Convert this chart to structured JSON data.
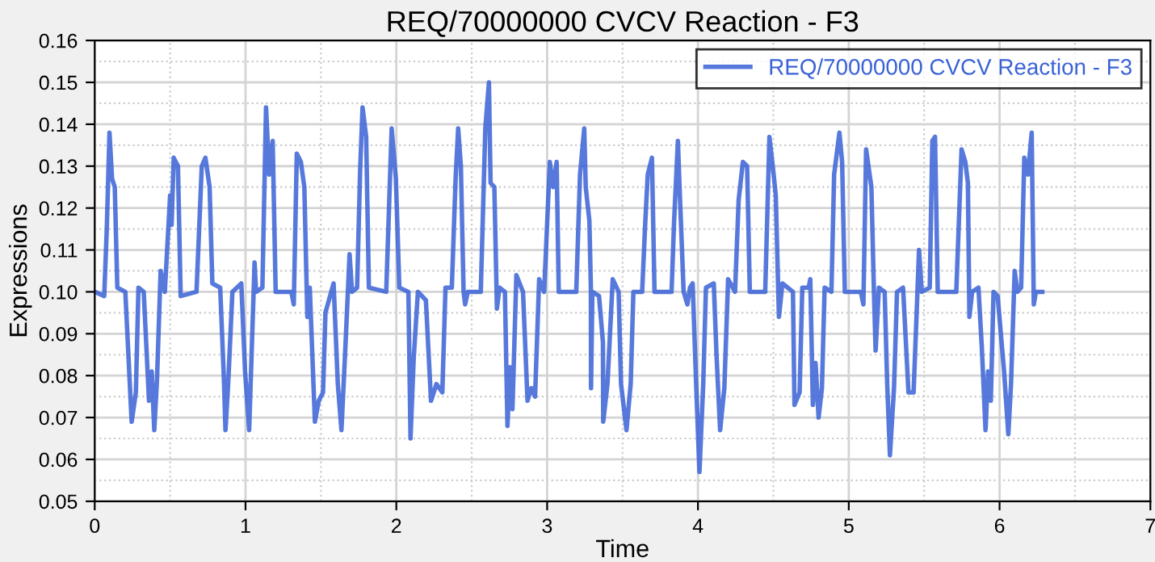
{
  "chart_data": {
    "type": "line",
    "title": "REQ/70000000 CVCV Reaction - F3",
    "xlabel": "Time",
    "ylabel": "Expressions",
    "xlim": [
      0,
      7
    ],
    "ylim": [
      0.05,
      0.16
    ],
    "xticks": [
      0,
      1,
      2,
      3,
      4,
      5,
      6,
      7
    ],
    "yticks": [
      0.05,
      0.06,
      0.07,
      0.08,
      0.09,
      {
        "value": 0.1,
        "label": "0.10"
      },
      0.11,
      0.12,
      0.13,
      0.14,
      0.15,
      0.16
    ],
    "grid": true,
    "legend": "top right",
    "line_style": "solid",
    "marker": "none",
    "series": [
      {
        "name": "REQ/70000000 CVCV Reaction - F3",
        "color": "#3a62d6",
        "x": [
          0,
          0.063,
          0.08,
          0.098,
          0.115,
          0.133,
          0.15,
          0.203,
          0.245,
          0.273,
          0.29,
          0.325,
          0.36,
          0.378,
          0.395,
          0.413,
          0.437,
          0.465,
          0.5,
          0.51,
          0.524,
          0.552,
          0.57,
          0.675,
          0.71,
          0.734,
          0.762,
          0.78,
          0.832,
          0.857,
          0.867,
          0.885,
          0.913,
          0.972,
          0.997,
          1.024,
          1.06,
          1.07,
          1.112,
          1.136,
          1.157,
          1.18,
          1.2,
          1.304,
          1.32,
          1.34,
          1.367,
          1.39,
          1.41,
          1.426,
          1.46,
          1.486,
          1.514,
          1.53,
          1.584,
          1.612,
          1.636,
          1.66,
          1.69,
          1.706,
          1.74,
          1.76,
          1.776,
          1.8,
          1.818,
          1.933,
          1.969,
          1.997,
          2.02,
          2.08,
          2.094,
          2.115,
          2.143,
          2.196,
          2.23,
          2.266,
          2.305,
          2.326,
          2.368,
          2.393,
          2.41,
          2.428,
          2.446,
          2.456,
          2.474,
          2.56,
          2.59,
          2.614,
          2.625,
          2.65,
          2.667,
          2.684,
          2.72,
          2.737,
          2.754,
          2.77,
          2.796,
          2.84,
          2.87,
          2.895,
          2.92,
          2.947,
          2.98,
          3.018,
          3.04,
          3.063,
          3.077,
          3.193,
          3.218,
          3.246,
          3.256,
          3.28,
          3.29,
          3.291,
          3.3,
          3.344,
          3.37,
          3.372,
          3.4,
          3.435,
          3.474,
          3.49,
          3.526,
          3.554,
          3.572,
          3.63,
          3.65,
          3.667,
          3.695,
          3.712,
          3.825,
          3.842,
          3.867,
          3.877,
          3.905,
          3.93,
          3.947,
          3.965,
          3.99,
          4.01,
          4.035,
          4.053,
          4.105,
          4.123,
          4.147,
          4.175,
          4.2,
          4.246,
          4.27,
          4.298,
          4.326,
          4.344,
          4.446,
          4.474,
          4.502,
          4.516,
          4.537,
          4.56,
          4.63,
          4.64,
          4.674,
          4.692,
          4.734,
          4.745,
          4.762,
          4.78,
          4.8,
          4.822,
          4.84,
          4.885,
          4.903,
          4.938,
          4.956,
          4.974,
          5.08,
          5.097,
          5.115,
          5.15,
          5.167,
          5.178,
          5.2,
          5.238,
          5.255,
          5.273,
          5.3,
          5.32,
          5.36,
          5.396,
          5.43,
          5.466,
          5.484,
          5.537,
          5.554,
          5.572,
          5.59,
          5.713,
          5.748,
          5.773,
          5.79,
          5.8,
          5.818,
          5.86,
          5.882,
          5.907,
          5.924,
          5.942,
          5.96,
          5.987,
          6.03,
          6.058,
          6.076,
          6.1,
          6.118,
          6.143,
          6.164,
          6.188,
          6.213,
          6.227,
          6.241,
          6.283
        ],
        "values": [
          0.1,
          0.099,
          0.115,
          0.138,
          0.127,
          0.125,
          0.101,
          0.1,
          0.069,
          0.076,
          0.101,
          0.1,
          0.074,
          0.081,
          0.067,
          0.079,
          0.105,
          0.1,
          0.123,
          0.116,
          0.132,
          0.13,
          0.099,
          0.1,
          0.13,
          0.132,
          0.125,
          0.102,
          0.101,
          0.079,
          0.067,
          0.078,
          0.1,
          0.102,
          0.081,
          0.067,
          0.107,
          0.1,
          0.101,
          0.144,
          0.128,
          0.136,
          0.1,
          0.1,
          0.097,
          0.133,
          0.131,
          0.125,
          0.094,
          0.101,
          0.069,
          0.074,
          0.076,
          0.095,
          0.102,
          0.078,
          0.067,
          0.085,
          0.109,
          0.1,
          0.101,
          0.129,
          0.144,
          0.137,
          0.101,
          0.1,
          0.139,
          0.127,
          0.101,
          0.1,
          0.065,
          0.084,
          0.1,
          0.098,
          0.074,
          0.078,
          0.076,
          0.101,
          0.101,
          0.127,
          0.139,
          0.13,
          0.1,
          0.097,
          0.1,
          0.1,
          0.139,
          0.15,
          0.126,
          0.125,
          0.096,
          0.101,
          0.1,
          0.068,
          0.082,
          0.072,
          0.104,
          0.1,
          0.074,
          0.077,
          0.075,
          0.103,
          0.1,
          0.131,
          0.125,
          0.131,
          0.1,
          0.1,
          0.128,
          0.139,
          0.125,
          0.117,
          0.101,
          0.077,
          0.1,
          0.099,
          0.088,
          0.069,
          0.078,
          0.103,
          0.1,
          0.078,
          0.067,
          0.078,
          0.1,
          0.1,
          0.116,
          0.128,
          0.132,
          0.1,
          0.1,
          0.117,
          0.136,
          0.126,
          0.1,
          0.097,
          0.101,
          0.102,
          0.076,
          0.057,
          0.078,
          0.101,
          0.102,
          0.085,
          0.067,
          0.077,
          0.103,
          0.1,
          0.122,
          0.131,
          0.13,
          0.1,
          0.1,
          0.137,
          0.128,
          0.123,
          0.094,
          0.102,
          0.1,
          0.073,
          0.076,
          0.101,
          0.101,
          0.103,
          0.073,
          0.083,
          0.07,
          0.077,
          0.101,
          0.1,
          0.128,
          0.138,
          0.131,
          0.1,
          0.1,
          0.097,
          0.134,
          0.125,
          0.1,
          0.086,
          0.101,
          0.1,
          0.078,
          0.061,
          0.077,
          0.1,
          0.101,
          0.076,
          0.076,
          0.11,
          0.1,
          0.101,
          0.136,
          0.137,
          0.1,
          0.1,
          0.134,
          0.131,
          0.126,
          0.094,
          0.1,
          0.101,
          0.087,
          0.067,
          0.081,
          0.074,
          0.1,
          0.099,
          0.081,
          0.066,
          0.078,
          0.105,
          0.1,
          0.101,
          0.132,
          0.128,
          0.138,
          0.097,
          0.1,
          0.1
        ]
      }
    ]
  }
}
